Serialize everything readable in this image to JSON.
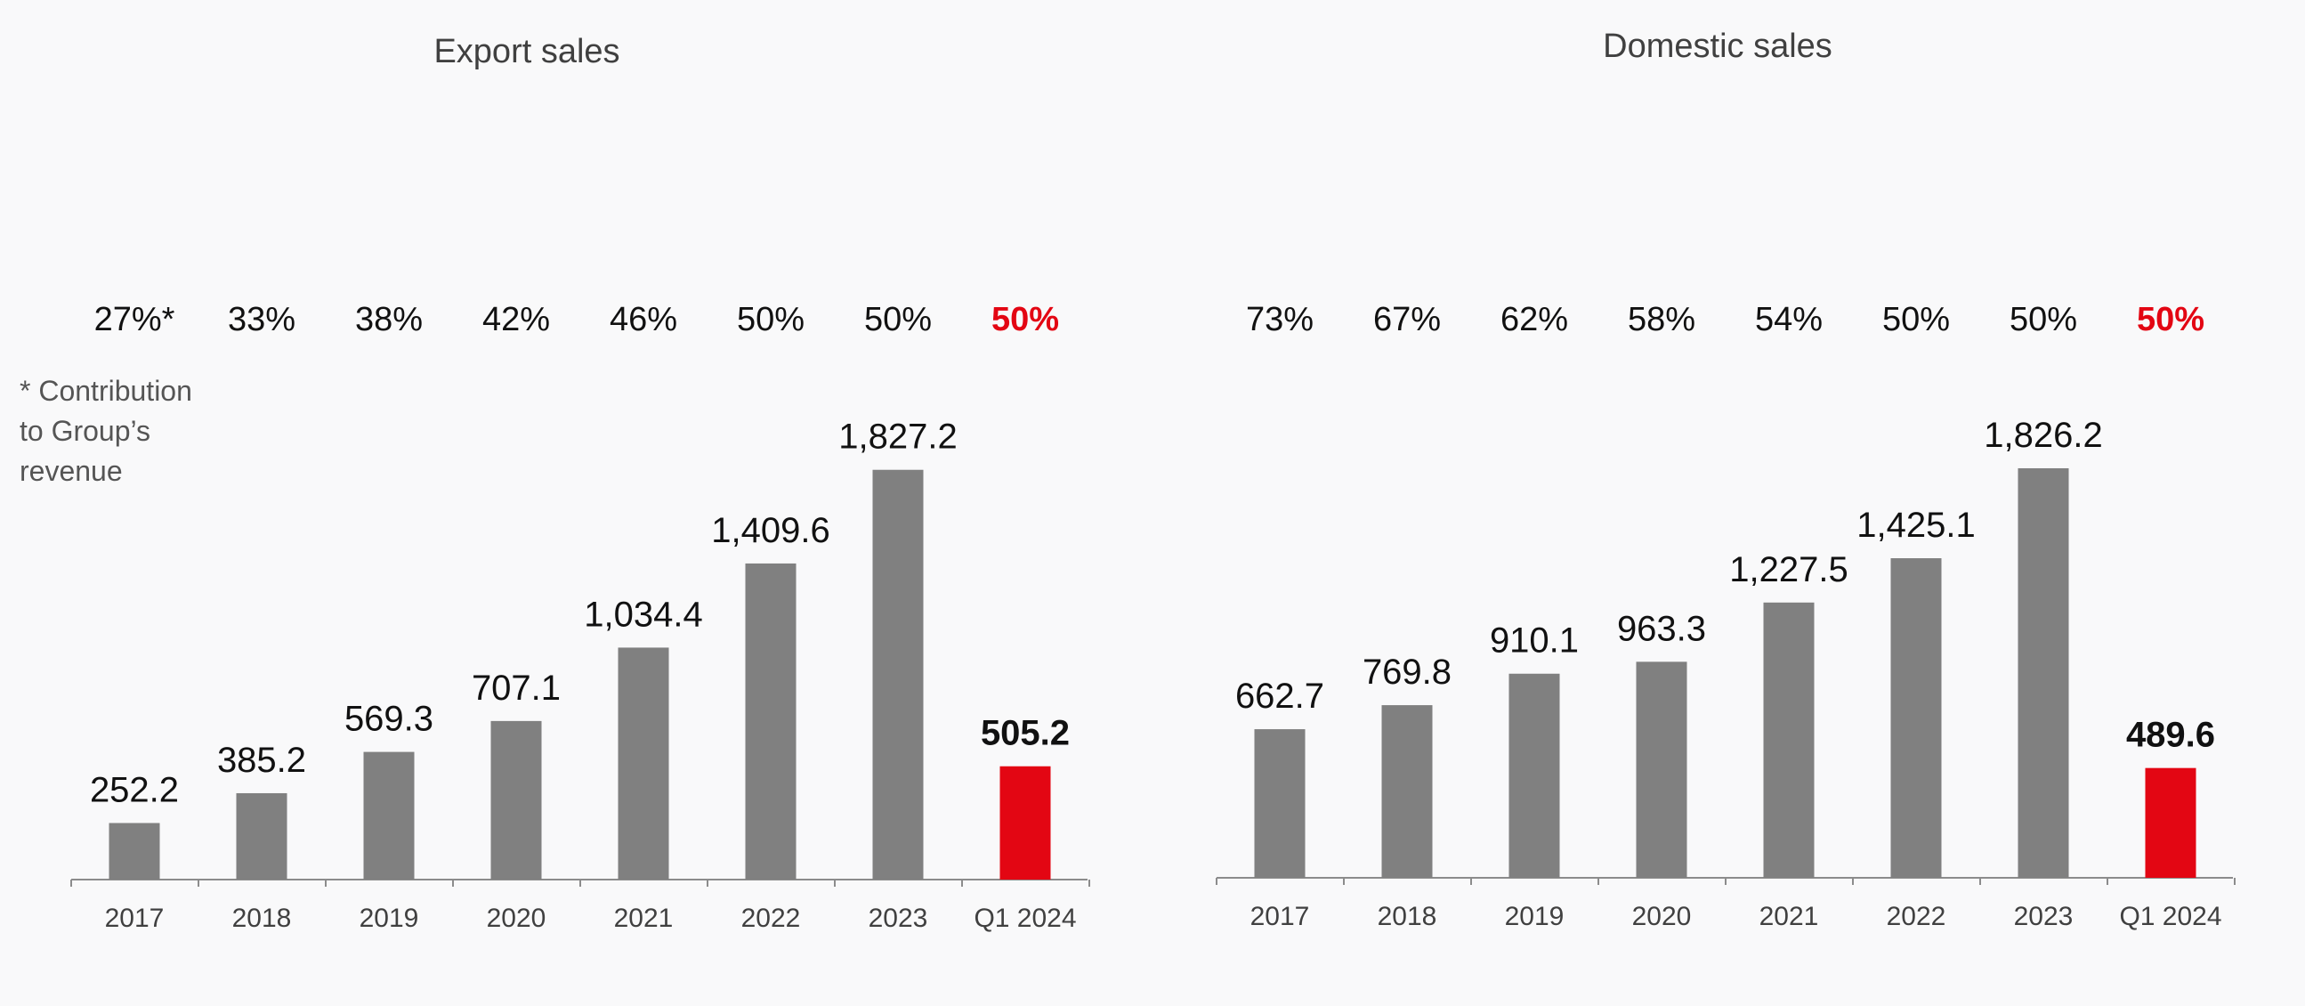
{
  "chart_data": [
    {
      "type": "bar",
      "title": "Export sales",
      "categories": [
        "2017",
        "2018",
        "2019",
        "2020",
        "2021",
        "2022",
        "2023",
        "Q1 2024"
      ],
      "values": [
        252.2,
        385.2,
        569.3,
        707.1,
        1034.4,
        1409.6,
        1827.2,
        505.2
      ],
      "value_labels": [
        "252.2",
        "385.2",
        "569.3",
        "707.1",
        "1,034.4",
        "1,409.6",
        "1,827.2",
        "505.2"
      ],
      "shares": [
        "27%*",
        "33%",
        "38%",
        "42%",
        "46%",
        "50%",
        "50%",
        "50%"
      ],
      "highlight_index": 7,
      "colors": {
        "bar": "#808080",
        "highlight": "#e30613"
      },
      "ylim": [
        0,
        1900
      ],
      "grid": false,
      "note_lines": [
        "* Contribution",
        "to Group’s",
        "revenue"
      ]
    },
    {
      "type": "bar",
      "title": "Domestic sales",
      "categories": [
        "2017",
        "2018",
        "2019",
        "2020",
        "2021",
        "2022",
        "2023",
        "Q1 2024"
      ],
      "values": [
        662.7,
        769.8,
        910.1,
        963.3,
        1227.5,
        1425.1,
        1826.2,
        489.6
      ],
      "value_labels": [
        "662.7",
        "769.8",
        "910.1",
        "963.3",
        "1,227.5",
        "1,425.1",
        "1,826.2",
        "489.6"
      ],
      "shares": [
        "73%",
        "67%",
        "62%",
        "58%",
        "54%",
        "50%",
        "50%",
        "50%"
      ],
      "highlight_index": 7,
      "colors": {
        "bar": "#808080",
        "highlight": "#e30613"
      },
      "ylim": [
        0,
        1900
      ],
      "grid": false
    }
  ]
}
